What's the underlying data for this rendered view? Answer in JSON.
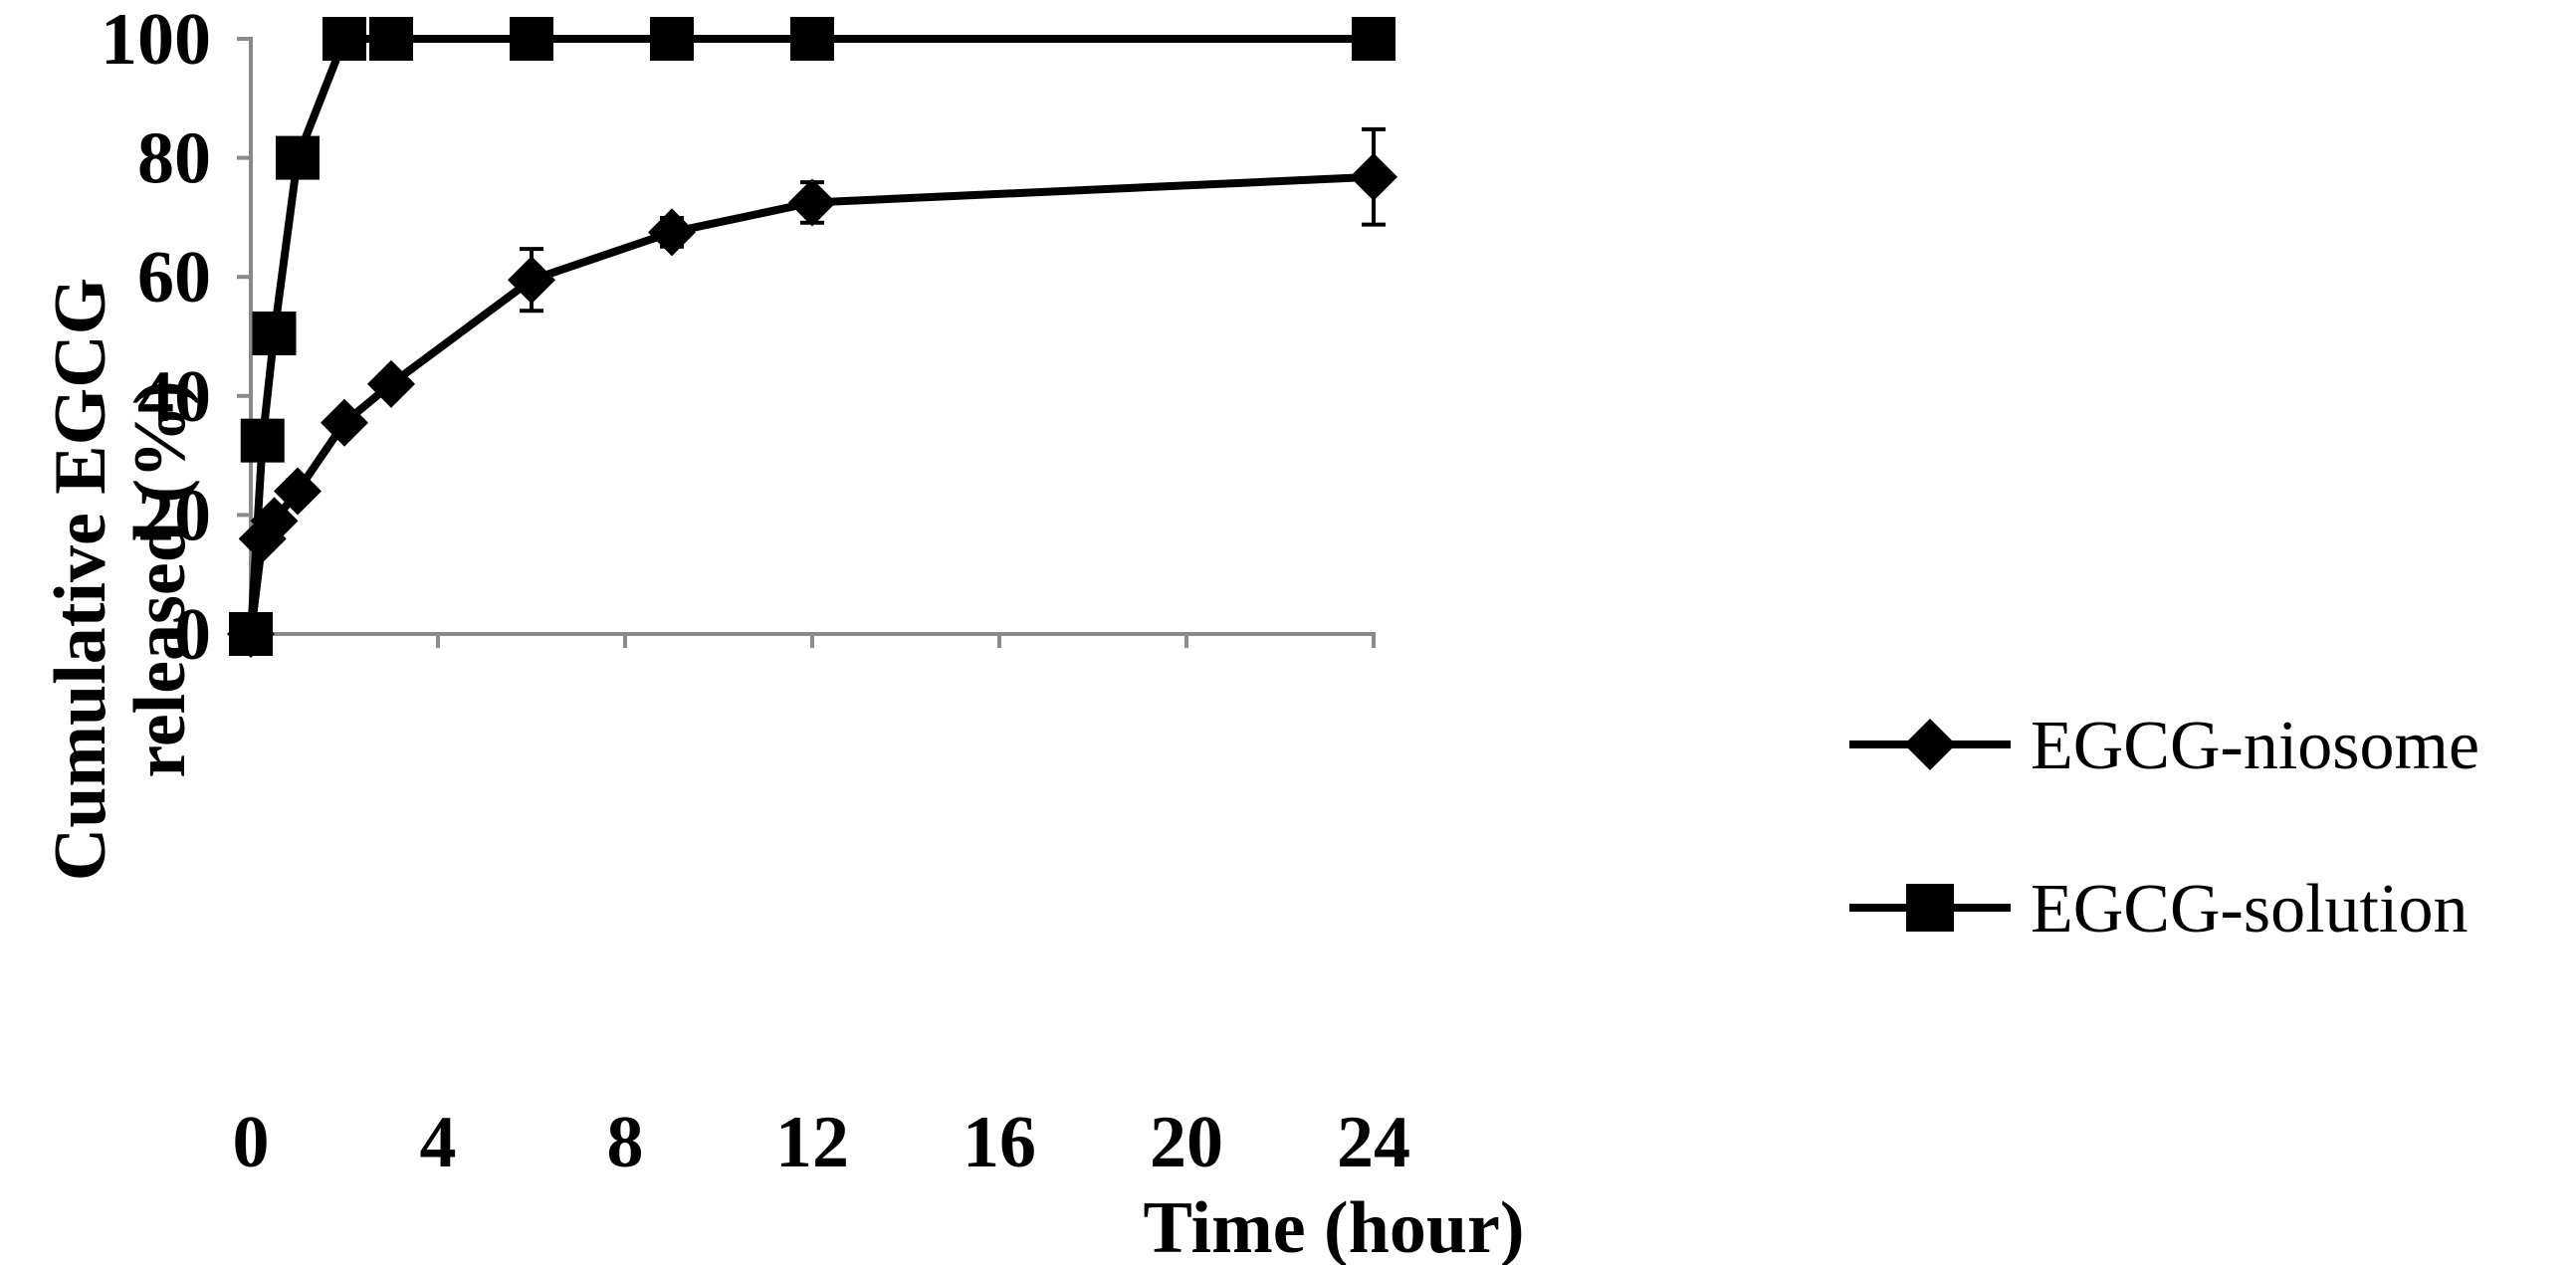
{
  "chart_data": {
    "type": "line",
    "title": "",
    "xlabel": "Time (hour)",
    "ylabel_lines": [
      "Cumulative EGCG",
      "released (%)"
    ],
    "xlim": [
      0,
      24
    ],
    "ylim": [
      0,
      100
    ],
    "xticks": [
      0,
      4,
      8,
      12,
      16,
      20,
      24
    ],
    "yticks": [
      0,
      20,
      40,
      60,
      80,
      100
    ],
    "grid": false,
    "legend_position": "right",
    "series": [
      {
        "name": "EGCG-niosome",
        "marker": "diamond",
        "x": [
          0,
          0.25,
          0.5,
          1,
          2,
          3,
          6,
          9,
          12,
          24
        ],
        "y": [
          0,
          16,
          19,
          24,
          35.5,
          42,
          59.5,
          67.5,
          72.5,
          76.8
        ],
        "err": [
          0,
          0.8,
          0.8,
          1.8,
          1.0,
          0.6,
          5.2,
          2.4,
          3.4,
          8.0
        ]
      },
      {
        "name": "EGCG-solution",
        "marker": "square",
        "x": [
          0,
          0.25,
          0.5,
          1,
          2,
          3,
          6,
          9,
          12,
          24
        ],
        "y": [
          0,
          32.5,
          50.5,
          80,
          100,
          100,
          100,
          100,
          100,
          100
        ]
      }
    ]
  }
}
